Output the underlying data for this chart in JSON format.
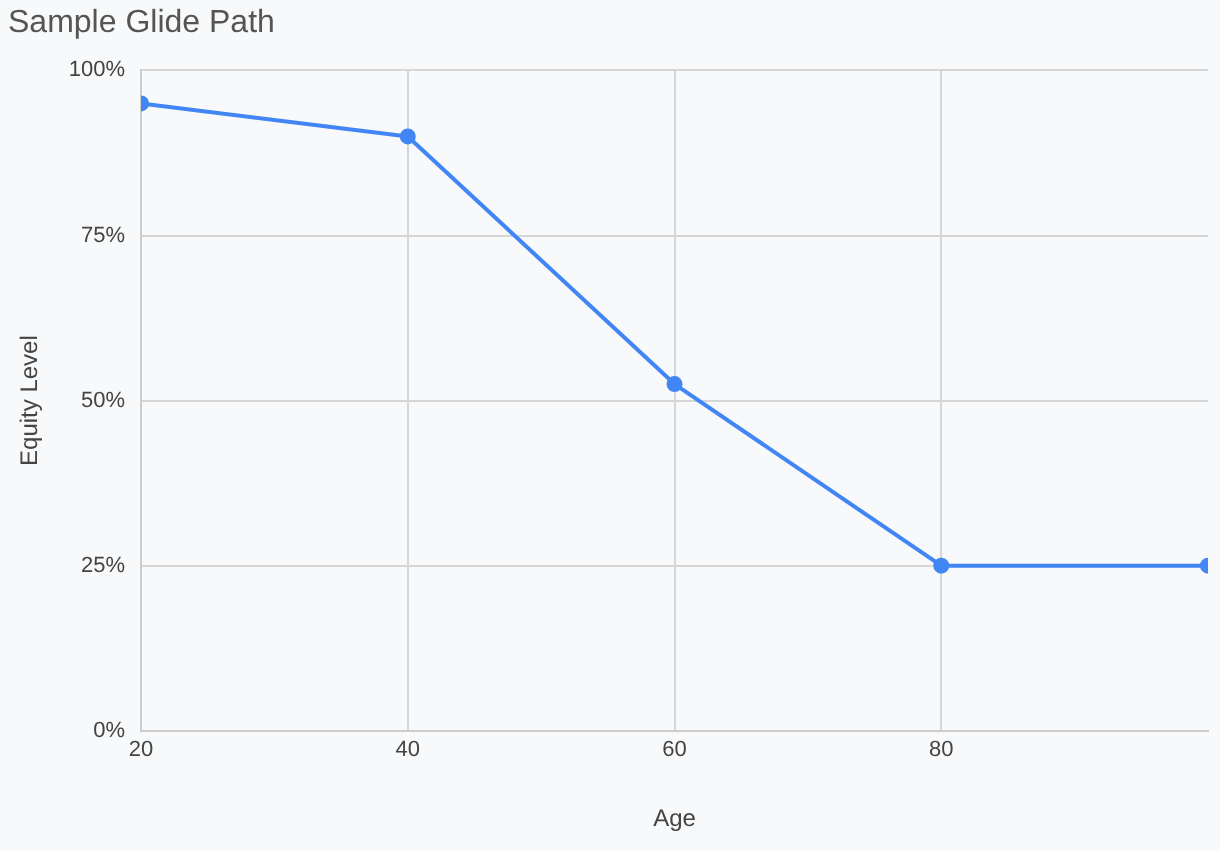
{
  "chart_data": {
    "type": "line",
    "title": "Sample Glide Path",
    "xlabel": "Age",
    "ylabel": "Equity Level",
    "x": [
      20,
      40,
      60,
      80,
      100
    ],
    "series": [
      {
        "color": "#4285f4",
        "values": [
          95,
          90,
          52.5,
          25,
          25
        ]
      }
    ],
    "xlim": [
      20,
      100
    ],
    "xticks": [
      20,
      40,
      60,
      80
    ],
    "ylim": [
      0,
      100
    ],
    "yticks": [
      {
        "value": 0,
        "label": "0%"
      },
      {
        "value": 25,
        "label": "25%"
      },
      {
        "value": 50,
        "label": "50%"
      },
      {
        "value": 75,
        "label": "75%"
      },
      {
        "value": 100,
        "label": "100%"
      }
    ],
    "grid": true,
    "legend": false,
    "marker": "circle",
    "line_style": "solid"
  }
}
